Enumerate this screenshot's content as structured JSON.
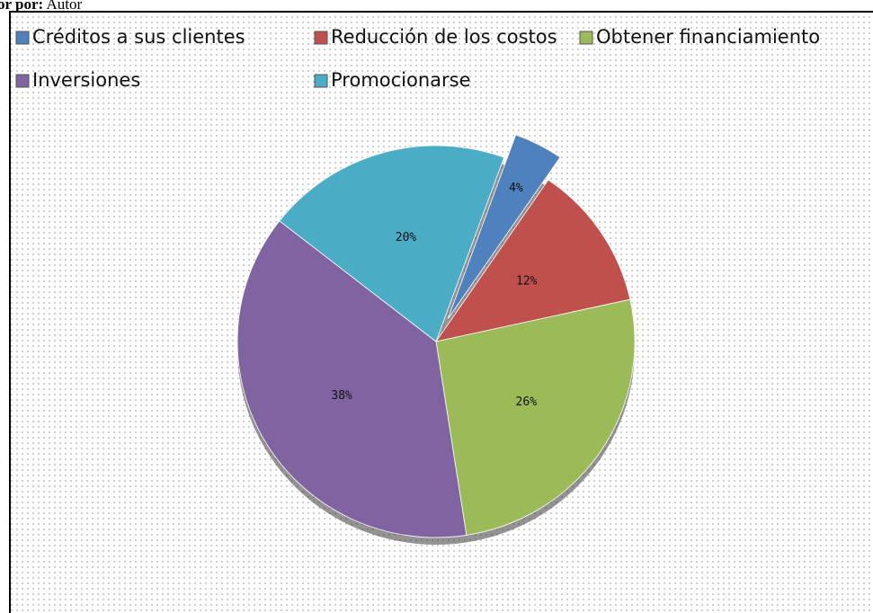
{
  "source_label": "or por:",
  "source": "Autor",
  "chart_data": {
    "type": "pie",
    "categories": [
      "Créditos a sus clientes",
      "Reducción de los costos",
      "Obtener financiamiento",
      "Inversiones",
      "Promocionarse"
    ],
    "values": [
      4,
      12,
      26,
      38,
      20
    ],
    "value_labels": [
      "4%",
      "12%",
      "26%",
      "38%",
      "20%"
    ],
    "colors": [
      "#4f81bd",
      "#c0504d",
      "#9bbb59",
      "#8064a2",
      "#4bacc6"
    ],
    "legend": "top"
  }
}
